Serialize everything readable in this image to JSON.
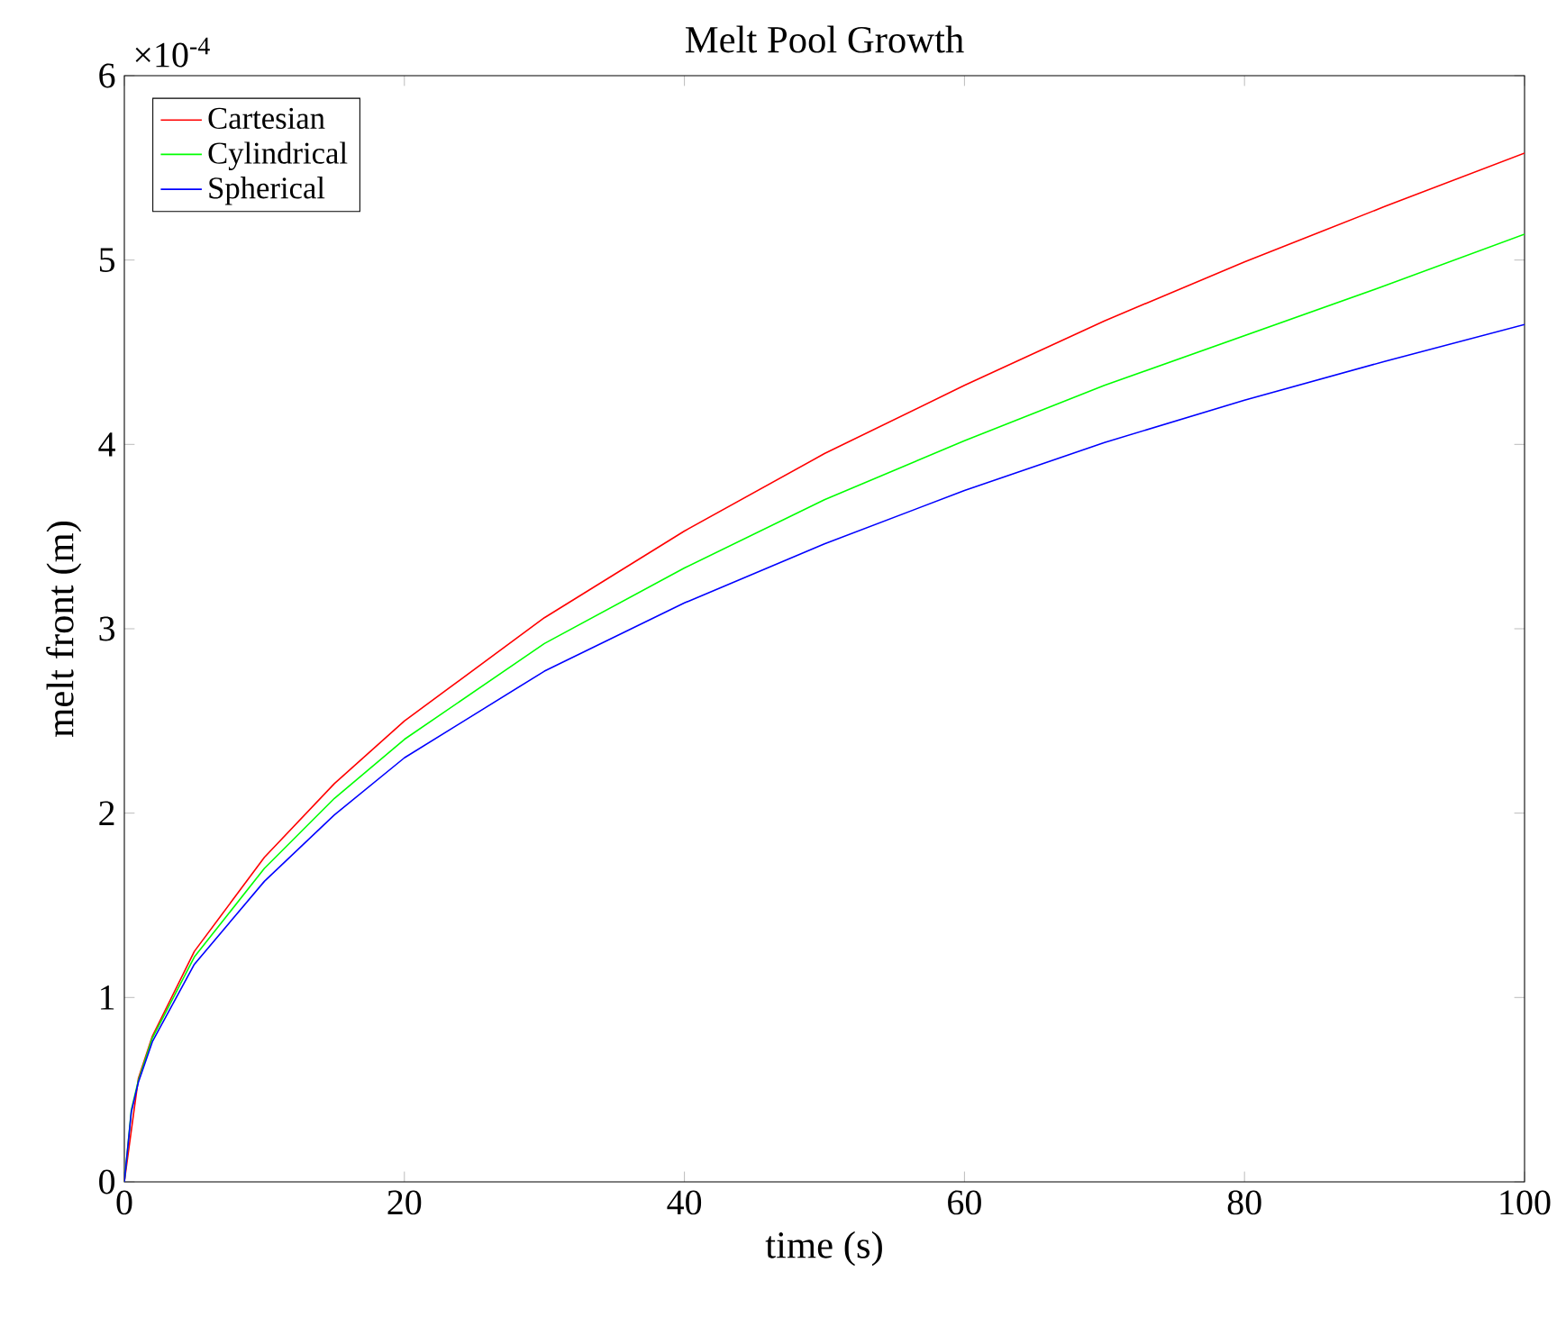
{
  "chart_data": {
    "type": "line",
    "title": "Melt Pool Growth",
    "xlabel": "time (s)",
    "ylabel": "melt front (m)",
    "annotations": [
      "×10$^{-4}$"
    ],
    "x": [
      0,
      0.5,
      1,
      2,
      5,
      10,
      15,
      20,
      30,
      40,
      50,
      60,
      70,
      80,
      90,
      100
    ],
    "series": [
      {
        "name": "Cartesian",
        "color": "#ff0000",
        "values": [
          0,
          null,
          0.56,
          0.79,
          1.25,
          1.76,
          2.16,
          2.5,
          3.06,
          3.53,
          3.95,
          4.32,
          4.67,
          4.99,
          5.29,
          5.58
        ]
      },
      {
        "name": "Cylindrical",
        "color": "#00ff00",
        "values": [
          0,
          0.39,
          0.55,
          0.78,
          1.22,
          1.7,
          2.08,
          2.4,
          2.92,
          3.33,
          3.7,
          4.02,
          4.32,
          4.59,
          4.86,
          5.14
        ]
      },
      {
        "name": "Spherical",
        "color": "#0000ff",
        "values": [
          0,
          0.38,
          0.54,
          0.76,
          1.18,
          1.63,
          1.99,
          2.3,
          2.77,
          3.14,
          3.46,
          3.75,
          4.01,
          4.24,
          4.45,
          4.65
        ]
      }
    ],
    "xlim": [
      0,
      100
    ],
    "ylim": [
      0,
      6
    ],
    "xticks": [
      0,
      20,
      40,
      60,
      80,
      100
    ],
    "yticks": [
      0,
      1,
      2,
      3,
      4,
      5,
      6
    ],
    "grid": false,
    "legend": "top left",
    "marker": "none",
    "line_style": "solid"
  }
}
